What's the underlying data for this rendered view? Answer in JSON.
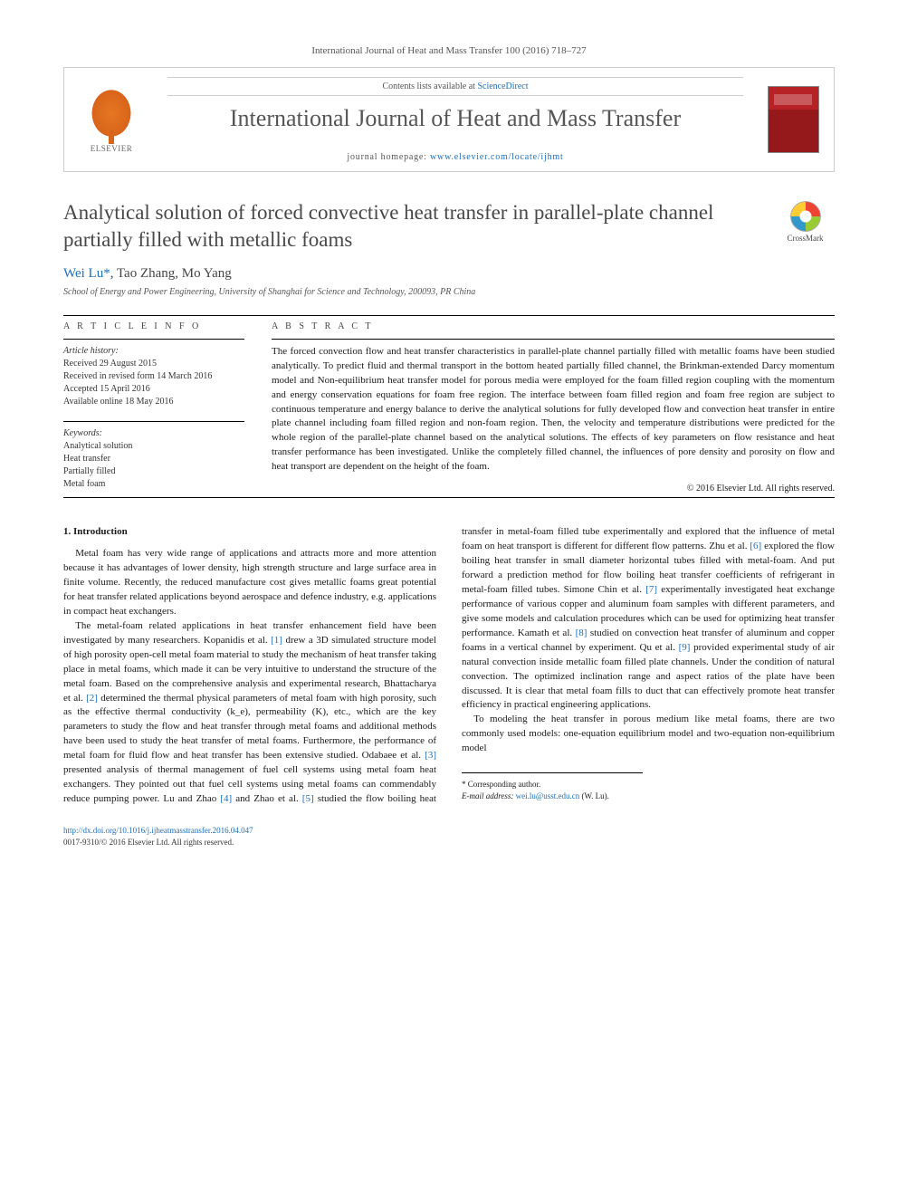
{
  "header": {
    "journal_ref": "International Journal of Heat and Mass Transfer 100 (2016) 718–727",
    "contents_prefix": "Contents lists available at ",
    "contents_link": "ScienceDirect",
    "journal_title": "International Journal of Heat and Mass Transfer",
    "homepage_prefix": "journal homepage: ",
    "homepage_url": "www.elsevier.com/locate/ijhmt",
    "publisher_label": "ELSEVIER",
    "crossmark_label": "CrossMark"
  },
  "article": {
    "title": "Analytical solution of forced convective heat transfer in parallel-plate channel partially filled with metallic foams",
    "authors_html": "Wei Lu *, Tao Zhang, Mo Yang",
    "author1": "Wei Lu",
    "author_marker": "*",
    "author2": ", Tao Zhang, Mo Yang",
    "affiliation": "School of Energy and Power Engineering, University of Shanghai for Science and Technology, 200093, PR China"
  },
  "info": {
    "label": "A R T I C L E   I N F O",
    "history_label": "Article history:",
    "received": "Received 29 August 2015",
    "revised": "Received in revised form 14 March 2016",
    "accepted": "Accepted 15 April 2016",
    "online": "Available online 18 May 2016",
    "keywords_label": "Keywords:",
    "kw1": "Analytical solution",
    "kw2": "Heat transfer",
    "kw3": "Partially filled",
    "kw4": "Metal foam"
  },
  "abstract": {
    "label": "A B S T R A C T",
    "text": "The forced convection flow and heat transfer characteristics in parallel-plate channel partially filled with metallic foams have been studied analytically. To predict fluid and thermal transport in the bottom heated partially filled channel, the Brinkman-extended Darcy momentum model and Non-equilibrium heat transfer model for porous media were employed for the foam filled region coupling with the momentum and energy conservation equations for foam free region. The interface between foam filled region and foam free region are subject to continuous temperature and energy balance to derive the analytical solutions for fully developed flow and convection heat transfer in entire plate channel including foam filled region and non-foam region. Then, the velocity and temperature distributions were predicted for the whole region of the parallel-plate channel based on the analytical solutions. The effects of key parameters on flow resistance and heat transfer performance has been investigated. Unlike the completely filled channel, the influences of pore density and porosity on flow and heat transport are dependent on the height of the foam.",
    "copyright": "© 2016 Elsevier Ltd. All rights reserved."
  },
  "body": {
    "section1_heading": "1. Introduction",
    "p1": "Metal foam has very wide range of applications and attracts more and more attention because it has advantages of lower density, high strength structure and large surface area in finite volume. Recently, the reduced manufacture cost gives metallic foams great potential for heat transfer related applications beyond aerospace and defence industry, e.g. applications in compact heat exchangers.",
    "p2_a": "The metal-foam related applications in heat transfer enhancement field have been investigated by many researchers. Kopanidis et al. ",
    "ref1": "[1]",
    "p2_b": " drew a 3D simulated structure model of high porosity open-cell metal foam material to study the mechanism of heat transfer taking place in metal foams, which made it can be very intuitive to understand the structure of the metal foam. Based on the comprehensive analysis and experimental research, Bhattacharya et al. ",
    "ref2": "[2]",
    "p2_c": " determined the thermal physical parameters of metal foam with high porosity, such as the effective thermal conductivity (k_e), permeability (K), etc., which are the key parameters to study the flow and heat transfer through metal foams and additional methods have been used to study the heat transfer of metal foams. Furthermore, the performance of metal foam for fluid flow and heat transfer has been extensive studied. Odabaee et al. ",
    "ref3": "[3]",
    "p3_a": "presented analysis of thermal management of fuel cell systems using metal foam heat exchangers. They pointed out that fuel cell systems using metal foams can commendably reduce pumping power. Lu and Zhao ",
    "ref4": "[4]",
    "p3_b": " and Zhao et al. ",
    "ref5": "[5]",
    "p3_c": " studied the flow boiling heat transfer in metal-foam filled tube experimentally and explored that the influence of metal foam on heat transport is different for different flow patterns. Zhu et al. ",
    "ref6": "[6]",
    "p3_d": " explored the flow boiling heat transfer in small diameter horizontal tubes filled with metal-foam. And put forward a prediction method for flow boiling heat transfer coefficients of refrigerant in metal-foam filled tubes. Simone Chin et al. ",
    "ref7": "[7]",
    "p3_e": " experimentally investigated heat exchange performance of various copper and aluminum foam samples with different parameters, and give some models and calculation procedures which can be used for optimizing heat transfer performance. Kamath et al. ",
    "ref8": "[8]",
    "p3_f": " studied on convection heat transfer of aluminum and copper foams in a vertical channel by experiment. Qu et al. ",
    "ref9": "[9]",
    "p3_g": " provided experimental study of air natural convection inside metallic foam filled plate channels. Under the condition of natural convection. The optimized inclination range and aspect ratios of the plate have been discussed. It is clear that metal foam fills to duct that can effectively promote heat transfer efficiency in practical engineering applications.",
    "p4": "To modeling the heat transfer in porous medium like metal foams, there are two commonly used models: one-equation equilibrium model and two-equation non-equilibrium model"
  },
  "footer": {
    "corr_label": "* Corresponding author.",
    "email_label": "E-mail address: ",
    "email": "wei.lu@usst.edu.cn",
    "email_who": " (W. Lu).",
    "doi": "http://dx.doi.org/10.1016/j.ijheatmasstransfer.2016.04.047",
    "issn_line": "0017-9310/© 2016 Elsevier Ltd. All rights reserved."
  },
  "colors": {
    "link": "#1d6fb8",
    "elsevier_orange": "#e67722",
    "cover_red": "#b62226"
  },
  "typography": {
    "body_fontsize_pt": 11,
    "title_fontsize_pt": 23,
    "journal_title_fontsize_pt": 26,
    "small_fontsize_pt": 10
  }
}
